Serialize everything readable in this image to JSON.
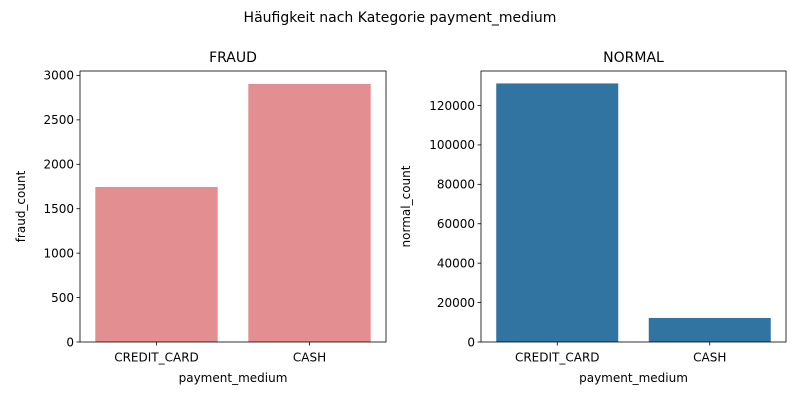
{
  "suptitle": "Häufigkeit nach Kategorie payment_medium",
  "chart_data": [
    {
      "type": "bar",
      "title": "FRAUD",
      "categories": [
        "CREDIT_CARD",
        "CASH"
      ],
      "values": [
        1745,
        2905
      ],
      "xlabel": "payment_medium",
      "ylabel": "fraud_count",
      "ylim": [
        0,
        3050
      ],
      "yticks": [
        0,
        500,
        1000,
        1500,
        2000,
        2500,
        3000
      ],
      "color": "#e38e91",
      "grid": false,
      "legend": "none"
    },
    {
      "type": "bar",
      "title": "NORMAL",
      "categories": [
        "CREDIT_CARD",
        "CASH"
      ],
      "values": [
        131200,
        12200
      ],
      "xlabel": "payment_medium",
      "ylabel": "normal_count",
      "ylim": [
        0,
        137500
      ],
      "yticks": [
        0,
        20000,
        40000,
        60000,
        80000,
        100000,
        120000
      ],
      "color": "#3274a1",
      "grid": false,
      "legend": "none"
    }
  ]
}
